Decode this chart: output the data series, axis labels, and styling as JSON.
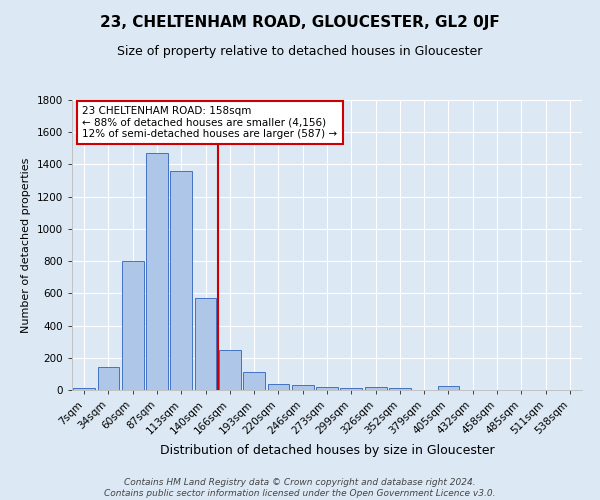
{
  "title": "23, CHELTENHAM ROAD, GLOUCESTER, GL2 0JF",
  "subtitle": "Size of property relative to detached houses in Gloucester",
  "xlabel": "Distribution of detached houses by size in Gloucester",
  "ylabel": "Number of detached properties",
  "footer_line1": "Contains HM Land Registry data © Crown copyright and database right 2024.",
  "footer_line2": "Contains public sector information licensed under the Open Government Licence v3.0.",
  "bin_labels": [
    "7sqm",
    "34sqm",
    "60sqm",
    "87sqm",
    "113sqm",
    "140sqm",
    "166sqm",
    "193sqm",
    "220sqm",
    "246sqm",
    "273sqm",
    "299sqm",
    "326sqm",
    "352sqm",
    "379sqm",
    "405sqm",
    "432sqm",
    "458sqm",
    "485sqm",
    "511sqm",
    "538sqm"
  ],
  "bar_heights": [
    10,
    140,
    800,
    1470,
    1360,
    570,
    250,
    110,
    40,
    28,
    18,
    15,
    18,
    10,
    0,
    22,
    0,
    0,
    0,
    0,
    0
  ],
  "bar_color": "#aec6e8",
  "bar_edge_color": "#4472c4",
  "background_color": "#dce9f5",
  "grid_color": "#ffffff",
  "red_line_x": 5.5,
  "annotation_text_line1": "23 CHELTENHAM ROAD: 158sqm",
  "annotation_text_line2": "← 88% of detached houses are smaller (4,156)",
  "annotation_text_line3": "12% of semi-detached houses are larger (587) →",
  "annotation_box_color": "#ffffff",
  "annotation_box_edge_color": "#cc0000",
  "ylim": [
    0,
    1800
  ],
  "yticks": [
    0,
    200,
    400,
    600,
    800,
    1000,
    1200,
    1400,
    1600,
    1800
  ],
  "title_fontsize": 11,
  "subtitle_fontsize": 9,
  "ylabel_fontsize": 8,
  "xlabel_fontsize": 9,
  "tick_fontsize": 7.5,
  "footer_fontsize": 6.5
}
